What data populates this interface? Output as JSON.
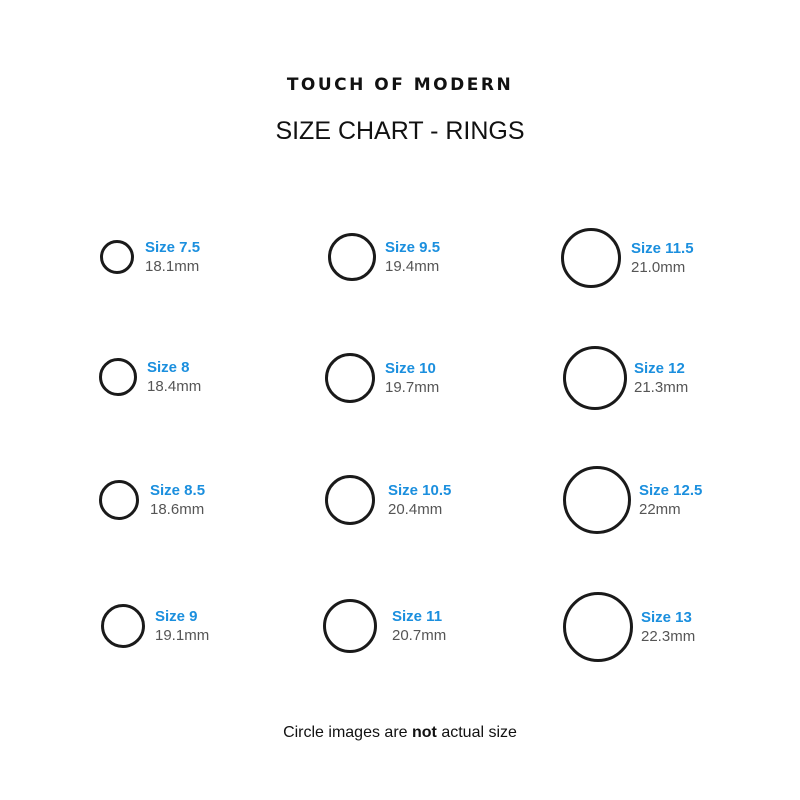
{
  "brand": "TOUCH OF MODERN",
  "title": "SIZE CHART - RINGS",
  "colors": {
    "size_label": "#1b8fde",
    "measurement": "#555555",
    "ring": "#1a1a1a"
  },
  "sizes": [
    {
      "label": "Size 7.5",
      "mm": "18.1mm"
    },
    {
      "label": "Size 8",
      "mm": "18.4mm"
    },
    {
      "label": "Size 8.5",
      "mm": "18.6mm"
    },
    {
      "label": "Size 9",
      "mm": "19.1mm"
    },
    {
      "label": "Size 9.5",
      "mm": "19.4mm"
    },
    {
      "label": "Size 10",
      "mm": "19.7mm"
    },
    {
      "label": "Size 10.5",
      "mm": "20.4mm"
    },
    {
      "label": "Size 11",
      "mm": "20.7mm"
    },
    {
      "label": "Size 11.5",
      "mm": "21.0mm"
    },
    {
      "label": "Size 12",
      "mm": "21.3mm"
    },
    {
      "label": "Size 12.5",
      "mm": "22mm"
    },
    {
      "label": "Size 13",
      "mm": "22.3mm"
    }
  ],
  "note": {
    "before": "Circle images are ",
    "bold": "not",
    "after": " actual size"
  }
}
